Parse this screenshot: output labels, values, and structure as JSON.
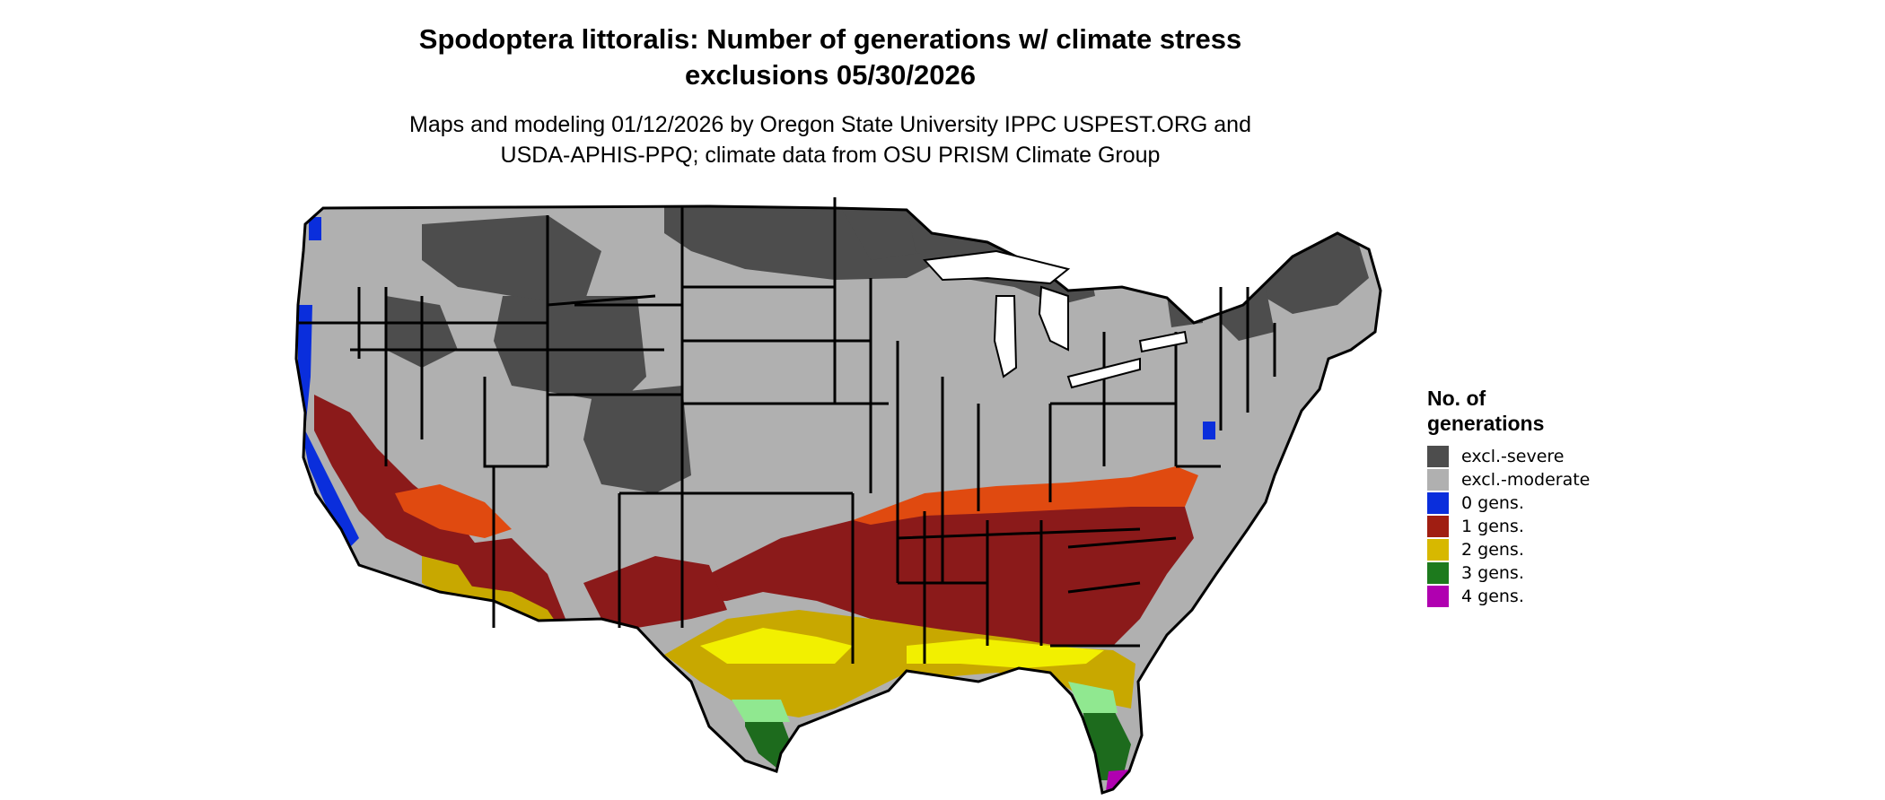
{
  "title_line1": "Spodoptera littoralis: Number of generations w/ climate stress",
  "title_line2": "exclusions 05/30/2026",
  "subtitle_line1": "Maps and modeling 01/12/2026 by Oregon State University IPPC USPEST.ORG and",
  "subtitle_line2": "USDA-APHIS-PPQ; climate data from OSU PRISM Climate Group",
  "legend": {
    "title_line1": "No. of",
    "title_line2": "generations",
    "items": [
      {
        "label": "excl.-severe",
        "color": "#4d4d4d"
      },
      {
        "label": "excl.-moderate",
        "color": "#b0b0b0"
      },
      {
        "label": "0 gens.",
        "color": "#0a2edc"
      },
      {
        "label": "1 gens.",
        "color": "#a01e12"
      },
      {
        "label": "2 gens.",
        "color": "#d7b800"
      },
      {
        "label": "3 gens.",
        "color": "#1d7a1d"
      },
      {
        "label": "4 gens.",
        "color": "#b000b0"
      }
    ]
  },
  "colors": {
    "severe": "#4d4d4d",
    "moderate": "#b0b0b0",
    "gen0": "#0a2edc",
    "gen1": "#8b1a1a",
    "gen1_light": "#e04a10",
    "gen2": "#c8a800",
    "gen2_light": "#f2f000",
    "gen3": "#1d6b1d",
    "gen3_light": "#90e890",
    "gen4": "#b000b0"
  }
}
